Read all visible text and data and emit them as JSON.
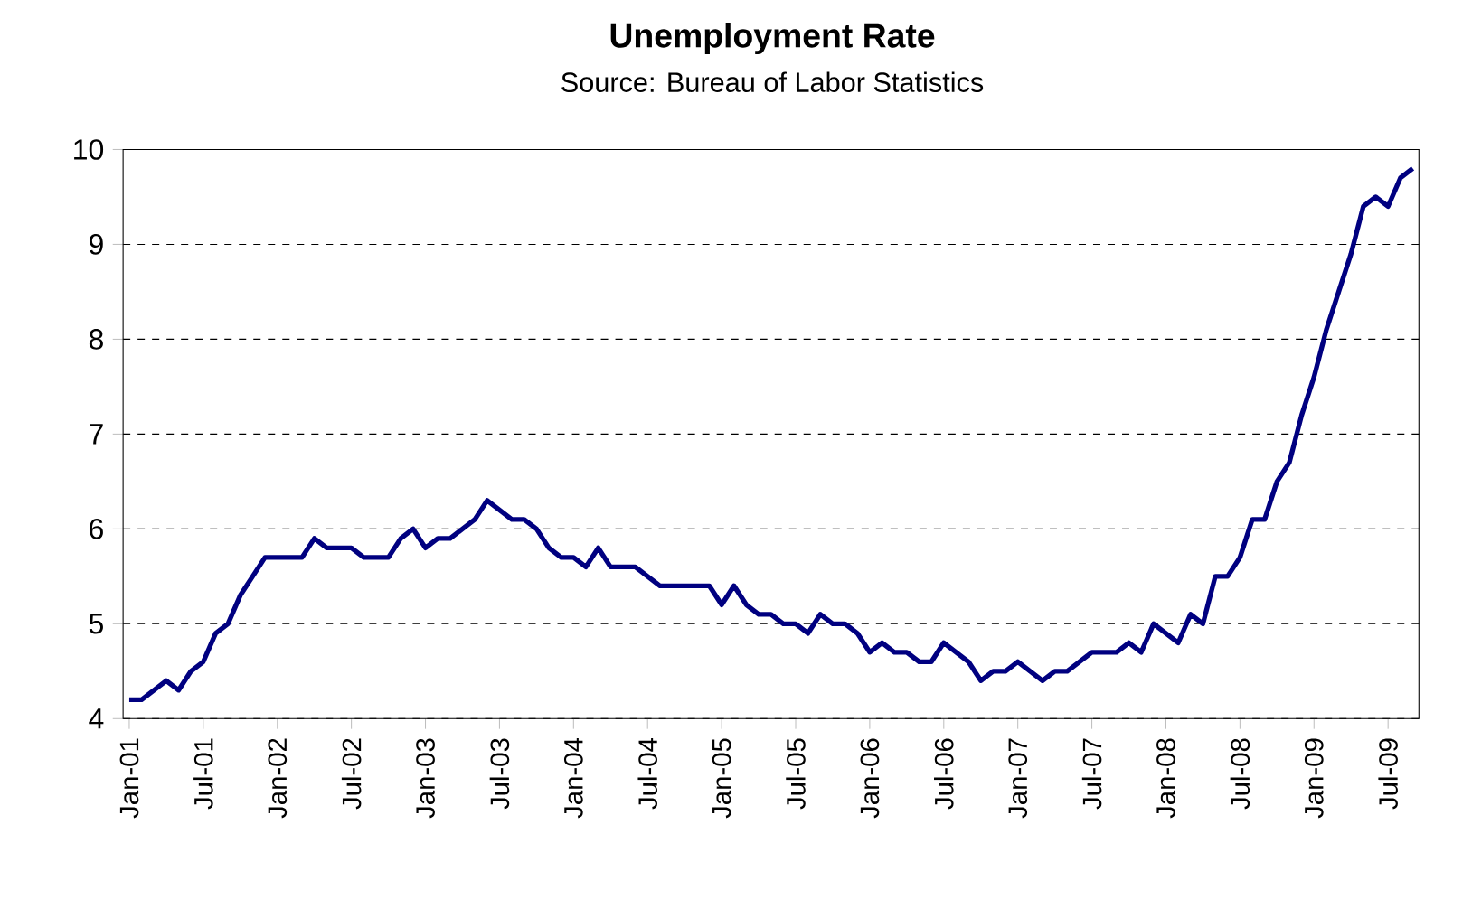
{
  "chart_data": {
    "type": "line",
    "title": "Unemployment Rate",
    "subtitle": "Source:  Bureau of Labor Statistics",
    "categories": [
      "Jan-01",
      null,
      null,
      null,
      null,
      null,
      "Jul-01",
      null,
      null,
      null,
      null,
      null,
      "Jan-02",
      null,
      null,
      null,
      null,
      null,
      "Jul-02",
      null,
      null,
      null,
      null,
      null,
      "Jan-03",
      null,
      null,
      null,
      null,
      null,
      "Jul-03",
      null,
      null,
      null,
      null,
      null,
      "Jan-04",
      null,
      null,
      null,
      null,
      null,
      "Jul-04",
      null,
      null,
      null,
      null,
      null,
      "Jan-05",
      null,
      null,
      null,
      null,
      null,
      "Jul-05",
      null,
      null,
      null,
      null,
      null,
      "Jan-06",
      null,
      null,
      null,
      null,
      null,
      "Jul-06",
      null,
      null,
      null,
      null,
      null,
      "Jan-07",
      null,
      null,
      null,
      null,
      null,
      "Jul-07",
      null,
      null,
      null,
      null,
      null,
      "Jan-08",
      null,
      null,
      null,
      null,
      null,
      "Jul-08",
      null,
      null,
      null,
      null,
      null,
      "Jan-09",
      null,
      null,
      null,
      null,
      null,
      "Jul-09",
      null,
      null
    ],
    "series": [
      {
        "color": "#000080",
        "values": [
          4.2,
          4.2,
          4.3,
          4.4,
          4.3,
          4.5,
          4.6,
          4.9,
          5.0,
          5.3,
          5.5,
          5.7,
          5.7,
          5.7,
          5.7,
          5.9,
          5.8,
          5.8,
          5.8,
          5.7,
          5.7,
          5.7,
          5.9,
          6.0,
          5.8,
          5.9,
          5.9,
          6.0,
          6.1,
          6.3,
          6.2,
          6.1,
          6.1,
          6.0,
          5.8,
          5.7,
          5.7,
          5.6,
          5.8,
          5.6,
          5.6,
          5.6,
          5.5,
          5.4,
          5.4,
          5.4,
          5.4,
          5.4,
          5.2,
          5.4,
          5.2,
          5.1,
          5.1,
          5.0,
          5.0,
          4.9,
          5.1,
          5.0,
          5.0,
          4.9,
          4.7,
          4.8,
          4.7,
          4.7,
          4.6,
          4.6,
          4.8,
          4.7,
          4.6,
          4.4,
          4.5,
          4.5,
          4.6,
          4.5,
          4.4,
          4.5,
          4.5,
          4.6,
          4.7,
          4.7,
          4.7,
          4.8,
          4.7,
          5.0,
          4.9,
          4.8,
          5.1,
          5.0,
          5.5,
          5.5,
          5.7,
          6.1,
          6.1,
          6.5,
          6.7,
          7.2,
          7.6,
          8.1,
          8.5,
          8.9,
          9.4,
          9.5,
          9.4,
          9.7,
          9.8
        ]
      }
    ],
    "ylim": [
      4,
      10
    ],
    "yticks": [
      4,
      5,
      6,
      7,
      8,
      9,
      10
    ],
    "grid": "y",
    "marker": "none",
    "line_style": "solid"
  }
}
